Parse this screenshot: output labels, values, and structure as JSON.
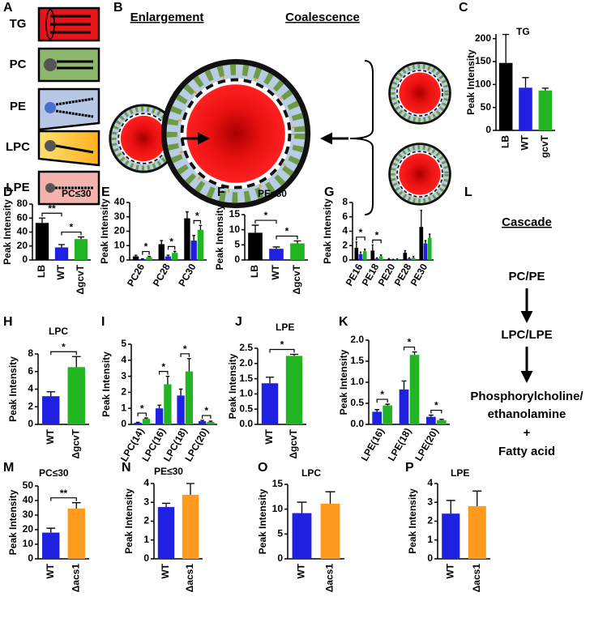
{
  "panel_a": {
    "label": "A",
    "items": [
      "TG",
      "PC",
      "PE",
      "LPC",
      "LPE"
    ]
  },
  "panel_b": {
    "label": "B",
    "left_title": "Enlargement",
    "right_title": "Coalescence"
  },
  "panel_l": {
    "label": "L",
    "title": "Cascade",
    "steps": [
      "PC/PE",
      "LPC/LPE",
      "Phosphorylcholine/",
      "ethanolamine",
      "+",
      "Fatty acid"
    ]
  },
  "chart_data": [
    {
      "type": "bar",
      "label": "C",
      "title": "TG",
      "ylabel": "Peak Intensity",
      "categories": [
        "LB",
        "WT",
        "gcvT"
      ],
      "values": [
        147,
        93,
        87
      ],
      "errors": [
        62,
        22,
        5
      ],
      "colors": [
        "#000000",
        "#2020e0",
        "#22b522"
      ],
      "ylim": [
        0,
        210
      ],
      "yticks": [
        0,
        50,
        100,
        150,
        200
      ],
      "annotations": []
    },
    {
      "type": "bar",
      "label": "D",
      "title": "PC≤30",
      "ylabel": "Peak Intensity",
      "categories": [
        "LB",
        "WT",
        "ΔgcvT"
      ],
      "values": [
        53,
        18,
        30
      ],
      "errors": [
        7,
        4,
        3
      ],
      "colors": [
        "#000000",
        "#2020e0",
        "#22b522"
      ],
      "ylim": [
        0,
        80
      ],
      "yticks": [
        0,
        20,
        40,
        60,
        80
      ],
      "annotations": [
        {
          "text": "**",
          "between": [
            0,
            1
          ]
        },
        {
          "text": "*",
          "between": [
            1,
            2
          ]
        }
      ]
    },
    {
      "type": "grouped-bar",
      "label": "E",
      "ylabel": "Peak Intensity",
      "categories": [
        "PC26",
        "PC28",
        "PC30"
      ],
      "series": [
        {
          "color": "#000000",
          "values": [
            2.5,
            11,
            29
          ],
          "errors": [
            0.8,
            2.5,
            4.5
          ]
        },
        {
          "color": "#2020e0",
          "values": [
            0.5,
            2.5,
            13.5
          ],
          "errors": [
            0.3,
            0.8,
            3.5
          ]
        },
        {
          "color": "#22b522",
          "values": [
            2,
            5,
            21
          ],
          "errors": [
            0.5,
            1,
            3
          ]
        }
      ],
      "ylim": [
        0,
        40
      ],
      "yticks": [
        0,
        10,
        20,
        30,
        40
      ],
      "annotations": [
        {
          "text": "*",
          "category": 0,
          "between": [
            1,
            2
          ]
        },
        {
          "text": "*",
          "category": 1,
          "between": [
            1,
            2
          ]
        },
        {
          "text": "*",
          "category": 2,
          "between": [
            1,
            2
          ]
        }
      ]
    },
    {
      "type": "bar",
      "label": "F",
      "title": "PE≤30",
      "ylabel": "Peak Intensity",
      "categories": [
        "LB",
        "WT",
        "ΔgcvT"
      ],
      "values": [
        9,
        3.7,
        5.5
      ],
      "errors": [
        2.5,
        0.6,
        0.8
      ],
      "colors": [
        "#000000",
        "#2020e0",
        "#22b522"
      ],
      "ylim": [
        0,
        15
      ],
      "yticks": [
        0,
        5,
        10,
        15
      ],
      "annotations": [
        {
          "text": "*",
          "between": [
            0,
            1
          ]
        },
        {
          "text": "*",
          "between": [
            1,
            2
          ]
        }
      ]
    },
    {
      "type": "grouped-bar",
      "label": "G",
      "ylabel": "Peak Intensity",
      "categories": [
        "PE16",
        "PE18",
        "PE20",
        "PE28",
        "PE30"
      ],
      "series": [
        {
          "color": "#000000",
          "values": [
            1.7,
            1.3,
            0.1,
            1.0,
            4.6
          ],
          "errors": [
            0.8,
            0.8,
            0.1,
            0.3,
            2.3
          ]
        },
        {
          "color": "#2020e0",
          "values": [
            0.8,
            0.2,
            0.05,
            0.2,
            2.3
          ],
          "errors": [
            0.3,
            0.1,
            0.05,
            0.1,
            0.4
          ]
        },
        {
          "color": "#22b522",
          "values": [
            1.2,
            0.5,
            0.1,
            0.3,
            3.1
          ],
          "errors": [
            0.3,
            0.2,
            0.05,
            0.2,
            0.5
          ]
        }
      ],
      "ylim": [
        0,
        8
      ],
      "yticks": [
        0,
        2,
        4,
        6,
        8
      ],
      "annotations": [
        {
          "text": "*",
          "category": 0,
          "between": [
            0,
            2
          ]
        },
        {
          "text": "*",
          "category": 1,
          "between": [
            0,
            2
          ]
        }
      ]
    },
    {
      "type": "bar",
      "label": "H",
      "title": "LPC",
      "ylabel": "Peak Intensity",
      "categories": [
        "WT",
        "ΔgcvT"
      ],
      "values": [
        3.2,
        6.5
      ],
      "errors": [
        0.5,
        1.2
      ],
      "colors": [
        "#2020e0",
        "#22b522"
      ],
      "ylim": [
        0,
        8
      ],
      "yticks": [
        0,
        2,
        4,
        6,
        8
      ],
      "annotations": [
        {
          "text": "*",
          "between": [
            0,
            1
          ]
        }
      ]
    },
    {
      "type": "grouped-bar",
      "label": "I",
      "ylabel": "Peak Intensity",
      "categories": [
        "LPC(14)",
        "LPC(16)",
        "LPC(18)",
        "LPC(20)"
      ],
      "series": [
        {
          "color": "#2020e0",
          "values": [
            0.1,
            1.0,
            1.8,
            0.2
          ],
          "errors": [
            0.03,
            0.2,
            0.4,
            0.05
          ]
        },
        {
          "color": "#22b522",
          "values": [
            0.35,
            2.5,
            3.3,
            0.15
          ],
          "errors": [
            0.05,
            0.5,
            0.8,
            0.05
          ]
        }
      ],
      "ylim": [
        0,
        5
      ],
      "yticks": [
        0,
        1,
        2,
        3,
        4,
        5
      ],
      "annotations": [
        {
          "text": "*",
          "category": 0,
          "between": [
            0,
            1
          ]
        },
        {
          "text": "*",
          "category": 1,
          "between": [
            0,
            1
          ]
        },
        {
          "text": "*",
          "category": 2,
          "between": [
            0,
            1
          ]
        },
        {
          "text": "*",
          "category": 3,
          "between": [
            0,
            1
          ]
        }
      ]
    },
    {
      "type": "bar",
      "label": "J",
      "title": "LPE",
      "ylabel": "Peak Intensity",
      "categories": [
        "WT",
        "ΔgcvT"
      ],
      "values": [
        1.35,
        2.25
      ],
      "errors": [
        0.2,
        0.05
      ],
      "colors": [
        "#2020e0",
        "#22b522"
      ],
      "ylim": [
        0,
        2.5
      ],
      "yticks": [
        {
          "value": 0,
          "label": "0.0"
        },
        {
          "value": 0.5,
          "label": "0.5"
        },
        {
          "value": 1,
          "label": "1.0"
        },
        {
          "value": 1.5,
          "label": "1.5"
        },
        {
          "value": 2,
          "label": "2.0"
        },
        {
          "value": 2.5,
          "label": "2.5"
        }
      ],
      "annotations": [
        {
          "text": "*",
          "between": [
            0,
            1
          ]
        }
      ]
    },
    {
      "type": "grouped-bar",
      "label": "K",
      "ylabel": "Peak Intensity",
      "categories": [
        "LPE(16)",
        "LPE(18)",
        "LPE(20)"
      ],
      "series": [
        {
          "color": "#2020e0",
          "values": [
            0.3,
            0.83,
            0.18
          ],
          "errors": [
            0.05,
            0.2,
            0.04
          ]
        },
        {
          "color": "#22b522",
          "values": [
            0.45,
            1.65,
            0.1
          ],
          "errors": [
            0.03,
            0.07,
            0.02
          ]
        }
      ],
      "ylim": [
        0,
        2
      ],
      "yticks": [
        {
          "value": 0,
          "label": "0.0"
        },
        {
          "value": 0.5,
          "label": "0.5"
        },
        {
          "value": 1,
          "label": "1.0"
        },
        {
          "value": 1.5,
          "label": "1.5"
        },
        {
          "value": 2,
          "label": "2.0"
        }
      ],
      "annotations": [
        {
          "text": "*",
          "category": 0,
          "between": [
            0,
            1
          ]
        },
        {
          "text": "*",
          "category": 1,
          "between": [
            0,
            1
          ]
        },
        {
          "text": "*",
          "category": 2,
          "between": [
            0,
            1
          ]
        }
      ]
    },
    {
      "type": "bar",
      "label": "M",
      "title": "PC≤30",
      "ylabel": "Peak Intensity",
      "categories": [
        "WT",
        "Δacs1"
      ],
      "values": [
        18,
        34.5
      ],
      "errors": [
        3,
        4
      ],
      "colors": [
        "#2020e0",
        "#ff9a1f"
      ],
      "ylim": [
        0,
        50
      ],
      "yticks": [
        0,
        10,
        20,
        30,
        40,
        50
      ],
      "annotations": [
        {
          "text": "**",
          "between": [
            0,
            1
          ]
        }
      ]
    },
    {
      "type": "bar",
      "label": "N",
      "title": "PE≤30",
      "ylabel": "Peak Intensity",
      "categories": [
        "WT",
        "Δacs1"
      ],
      "values": [
        2.75,
        3.4
      ],
      "errors": [
        0.2,
        0.6
      ],
      "colors": [
        "#2020e0",
        "#ff9a1f"
      ],
      "ylim": [
        0,
        4
      ],
      "yticks": [
        0,
        1,
        2,
        3,
        4
      ],
      "annotations": []
    },
    {
      "type": "bar",
      "label": "O",
      "title": "LPC",
      "ylabel": "Peak Intensity",
      "categories": [
        "WT",
        "Δacs1"
      ],
      "values": [
        9.2,
        11.1
      ],
      "errors": [
        2.2,
        2.4
      ],
      "colors": [
        "#2020e0",
        "#ff9a1f"
      ],
      "ylim": [
        0,
        15
      ],
      "yticks": [
        0,
        5,
        10,
        15
      ],
      "annotations": []
    },
    {
      "type": "bar",
      "label": "P",
      "title": "LPE",
      "ylabel": "Peak Intensity",
      "categories": [
        "WT",
        "Δacs1"
      ],
      "values": [
        2.4,
        2.8
      ],
      "errors": [
        0.7,
        0.8
      ],
      "colors": [
        "#2020e0",
        "#ff9a1f"
      ],
      "ylim": [
        0,
        4
      ],
      "yticks": [
        0,
        1,
        2,
        3,
        4
      ],
      "annotations": []
    }
  ]
}
